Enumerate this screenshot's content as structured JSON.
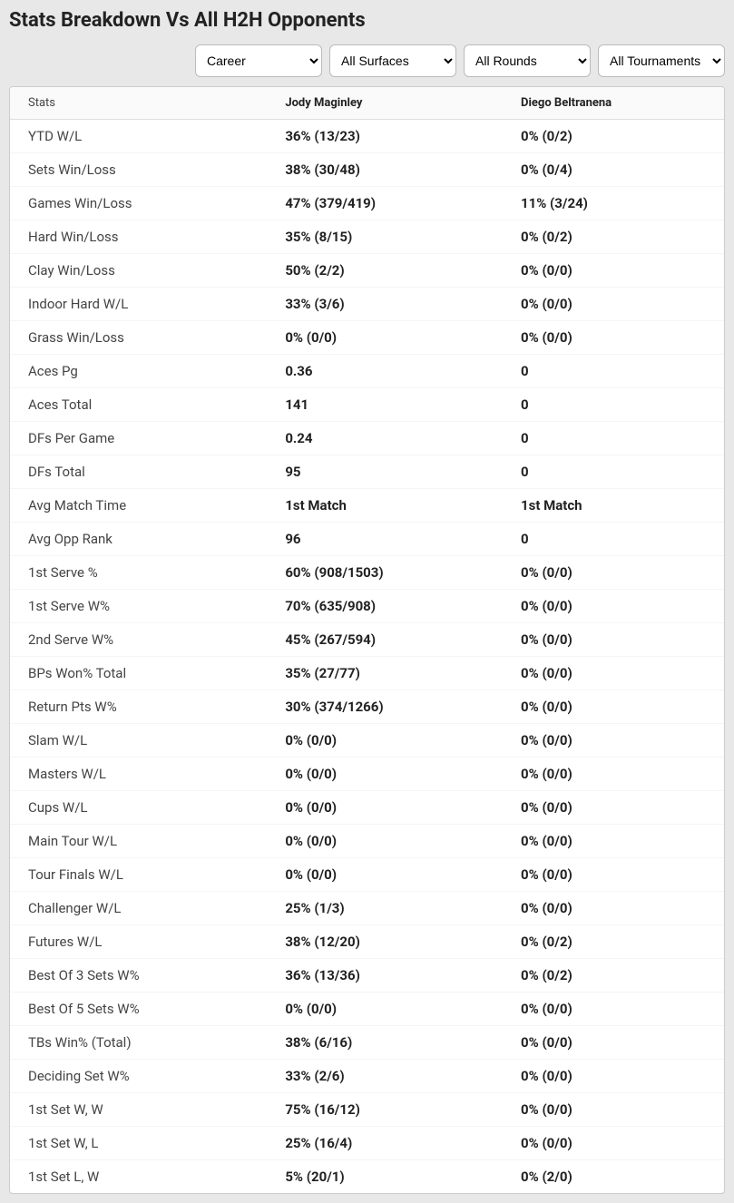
{
  "title": "Stats Breakdown Vs All H2H Opponents",
  "filters": {
    "period": {
      "selected": "Career",
      "options": [
        "Career"
      ]
    },
    "surface": {
      "selected": "All Surfaces",
      "options": [
        "All Surfaces"
      ]
    },
    "round": {
      "selected": "All Rounds",
      "options": [
        "All Rounds"
      ]
    },
    "tournament": {
      "selected": "All Tournaments",
      "options": [
        "All Tournaments"
      ]
    }
  },
  "columns": [
    "Stats",
    "Jody Maginley",
    "Diego Beltranena"
  ],
  "rows": [
    {
      "stat": "YTD W/L",
      "p1": "36% (13/23)",
      "p2": "0% (0/2)"
    },
    {
      "stat": "Sets Win/Loss",
      "p1": "38% (30/48)",
      "p2": "0% (0/4)"
    },
    {
      "stat": "Games Win/Loss",
      "p1": "47% (379/419)",
      "p2": "11% (3/24)"
    },
    {
      "stat": "Hard Win/Loss",
      "p1": "35% (8/15)",
      "p2": "0% (0/2)"
    },
    {
      "stat": "Clay Win/Loss",
      "p1": "50% (2/2)",
      "p2": "0% (0/0)"
    },
    {
      "stat": "Indoor Hard W/L",
      "p1": "33% (3/6)",
      "p2": "0% (0/0)"
    },
    {
      "stat": "Grass Win/Loss",
      "p1": "0% (0/0)",
      "p2": "0% (0/0)"
    },
    {
      "stat": "Aces Pg",
      "p1": "0.36",
      "p2": "0"
    },
    {
      "stat": "Aces Total",
      "p1": "141",
      "p2": "0"
    },
    {
      "stat": "DFs Per Game",
      "p1": "0.24",
      "p2": "0"
    },
    {
      "stat": "DFs Total",
      "p1": "95",
      "p2": "0"
    },
    {
      "stat": "Avg Match Time",
      "p1": "1st Match",
      "p2": "1st Match"
    },
    {
      "stat": "Avg Opp Rank",
      "p1": "96",
      "p2": "0"
    },
    {
      "stat": "1st Serve %",
      "p1": "60% (908/1503)",
      "p2": "0% (0/0)"
    },
    {
      "stat": "1st Serve W%",
      "p1": "70% (635/908)",
      "p2": "0% (0/0)"
    },
    {
      "stat": "2nd Serve W%",
      "p1": "45% (267/594)",
      "p2": "0% (0/0)"
    },
    {
      "stat": "BPs Won% Total",
      "p1": "35% (27/77)",
      "p2": "0% (0/0)"
    },
    {
      "stat": "Return Pts W%",
      "p1": "30% (374/1266)",
      "p2": "0% (0/0)"
    },
    {
      "stat": "Slam W/L",
      "p1": "0% (0/0)",
      "p2": "0% (0/0)"
    },
    {
      "stat": "Masters W/L",
      "p1": "0% (0/0)",
      "p2": "0% (0/0)"
    },
    {
      "stat": "Cups W/L",
      "p1": "0% (0/0)",
      "p2": "0% (0/0)"
    },
    {
      "stat": "Main Tour W/L",
      "p1": "0% (0/0)",
      "p2": "0% (0/0)"
    },
    {
      "stat": "Tour Finals W/L",
      "p1": "0% (0/0)",
      "p2": "0% (0/0)"
    },
    {
      "stat": "Challenger W/L",
      "p1": "25% (1/3)",
      "p2": "0% (0/0)"
    },
    {
      "stat": "Futures W/L",
      "p1": "38% (12/20)",
      "p2": "0% (0/2)"
    },
    {
      "stat": "Best Of 3 Sets W%",
      "p1": "36% (13/36)",
      "p2": "0% (0/2)"
    },
    {
      "stat": "Best Of 5 Sets W%",
      "p1": "0% (0/0)",
      "p2": "0% (0/0)"
    },
    {
      "stat": "TBs Win% (Total)",
      "p1": "38% (6/16)",
      "p2": "0% (0/0)"
    },
    {
      "stat": "Deciding Set W%",
      "p1": "33% (2/6)",
      "p2": "0% (0/0)"
    },
    {
      "stat": "1st Set W, W",
      "p1": "75% (16/12)",
      "p2": "0% (0/0)"
    },
    {
      "stat": "1st Set W, L",
      "p1": "25% (16/4)",
      "p2": "0% (0/0)"
    },
    {
      "stat": "1st Set L, W",
      "p1": "5% (20/1)",
      "p2": "0% (2/0)"
    }
  ]
}
